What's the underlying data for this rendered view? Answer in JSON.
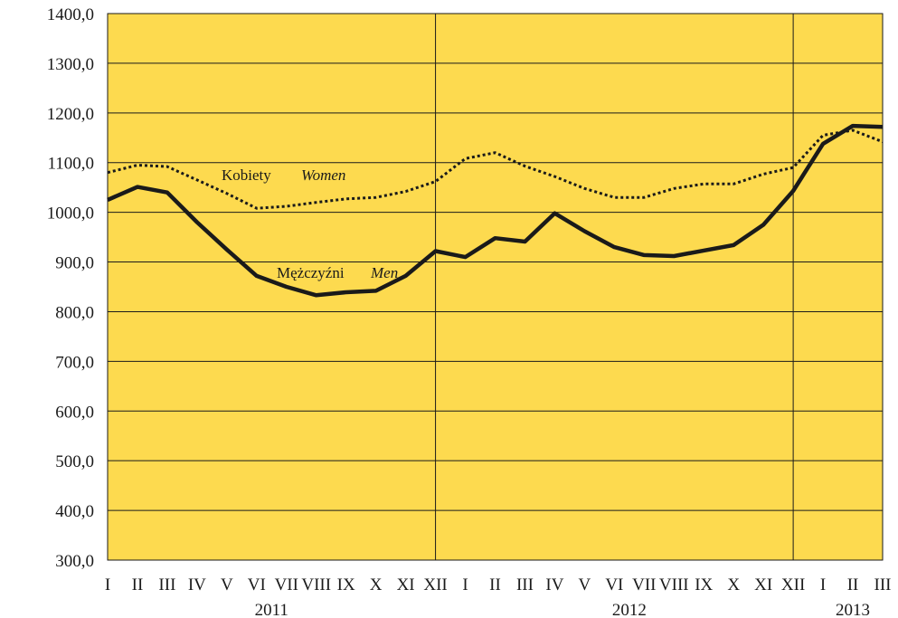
{
  "chart_data": {
    "type": "line",
    "background_color": "#FDDA4F",
    "grid": true,
    "ylim": [
      300,
      1400
    ],
    "yticks": [
      300,
      400,
      500,
      600,
      700,
      800,
      900,
      1000,
      1100,
      1200,
      1300,
      1400
    ],
    "ytick_labels": [
      "300,0",
      "400,0",
      "500,0",
      "600,0",
      "700,0",
      "800,0",
      "900,0",
      "1000,0",
      "1100,0",
      "1200,0",
      "1300,0",
      "1400,0"
    ],
    "categories": [
      "I",
      "II",
      "III",
      "IV",
      "V",
      "VI",
      "VII",
      "VIII",
      "IX",
      "X",
      "XI",
      "XII",
      "I",
      "II",
      "III",
      "IV",
      "V",
      "VI",
      "VII",
      "VIII",
      "IX",
      "X",
      "XI",
      "XII",
      "I",
      "II",
      "III"
    ],
    "years": [
      {
        "label": "2011",
        "start": 0,
        "end": 11
      },
      {
        "label": "2012",
        "start": 12,
        "end": 23
      },
      {
        "label": "2013",
        "start": 24,
        "end": 26
      }
    ],
    "series": [
      {
        "name": "Kobiety",
        "name_en": "Women",
        "style": "dotted",
        "color": "#1a1a1a",
        "values": [
          1080,
          1095,
          1092,
          1065,
          1038,
          1008,
          1012,
          1020,
          1027,
          1030,
          1042,
          1062,
          1108,
          1120,
          1093,
          1072,
          1048,
          1030,
          1030,
          1048,
          1057,
          1057,
          1077,
          1090,
          1155,
          1165,
          1142
        ]
      },
      {
        "name": "Mężczyźni",
        "name_en": "Men",
        "style": "solid",
        "color": "#1a1a1a",
        "values": [
          1025,
          1051,
          1040,
          980,
          925,
          872,
          850,
          833,
          839,
          842,
          872,
          922,
          910,
          948,
          941,
          998,
          962,
          930,
          914,
          912,
          923,
          934,
          975,
          1043,
          1138,
          1174,
          1172
        ]
      }
    ]
  }
}
